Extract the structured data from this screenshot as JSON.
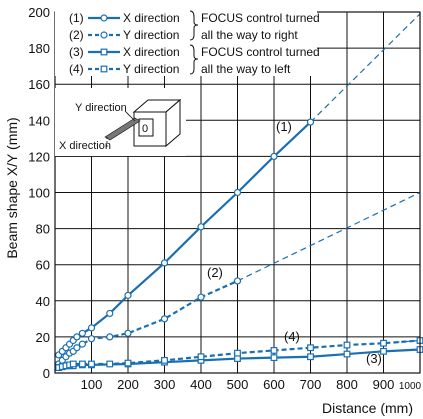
{
  "chart_data": {
    "type": "line",
    "xlabel": "Distance (mm)",
    "ylabel": "Beam shape X/Y (mm)",
    "xlim": [
      0,
      1000
    ],
    "ylim": [
      0,
      200
    ],
    "x_ticks": [
      100,
      200,
      300,
      400,
      500,
      600,
      700,
      800,
      900,
      1000
    ],
    "y_ticks": [
      0,
      20,
      40,
      60,
      80,
      100,
      120,
      140,
      160,
      180,
      200
    ],
    "grid": true,
    "legend_position": "top-left",
    "legend": [
      {
        "index": "(1)",
        "axis_text": "X direction",
        "note": "FOCUS control turned"
      },
      {
        "index": "(2)",
        "axis_text": "Y direction",
        "note": "all the way to right"
      },
      {
        "index": "(3)",
        "axis_text": "X direction",
        "note": "FOCUS control turned"
      },
      {
        "index": "(4)",
        "axis_text": "Y direction",
        "note": "all the way to left"
      }
    ],
    "series": [
      {
        "name": "(1) X direction",
        "label": "(1)",
        "style": "solid",
        "marker": "circle",
        "x": [
          10,
          20,
          30,
          40,
          50,
          60,
          75,
          100,
          150,
          200,
          300,
          400,
          500,
          600,
          700
        ],
        "y": [
          10,
          12,
          14,
          16,
          18,
          20,
          22,
          25,
          33,
          43,
          61,
          81,
          100,
          120,
          139
        ],
        "extrapolation": {
          "x": [
            700,
            1000
          ],
          "y": [
            139,
            199
          ]
        }
      },
      {
        "name": "(2) Y direction",
        "label": "(2)",
        "style": "dotted",
        "marker": "circle",
        "x": [
          10,
          20,
          30,
          40,
          50,
          60,
          75,
          100,
          150,
          200,
          300,
          400,
          500
        ],
        "y": [
          5,
          7,
          9,
          11,
          12,
          14,
          16,
          19,
          20,
          22,
          30,
          42,
          51
        ],
        "extrapolation": {
          "x": [
            500,
            1000
          ],
          "y": [
            51,
            100
          ]
        }
      },
      {
        "name": "(3) X direction",
        "label": "(3)",
        "style": "solid",
        "marker": "square",
        "x": [
          10,
          20,
          30,
          40,
          50,
          75,
          100,
          200,
          300,
          400,
          500,
          600,
          700,
          800,
          900,
          1000
        ],
        "y": [
          3,
          3.5,
          4,
          4,
          4,
          4.5,
          4.5,
          5,
          6,
          7,
          8,
          8.5,
          9,
          10.5,
          12,
          13
        ]
      },
      {
        "name": "(4) Y direction",
        "label": "(4)",
        "style": "dotted",
        "marker": "square",
        "x": [
          10,
          20,
          30,
          40,
          50,
          75,
          100,
          150,
          200,
          300,
          400,
          500,
          600,
          700,
          800,
          900,
          1000
        ],
        "y": [
          3,
          3.5,
          4,
          4.5,
          5,
          5,
          5,
          5,
          5.5,
          7,
          9,
          11,
          12.5,
          14,
          15.5,
          16.5,
          18
        ],
        "extrapolation": {
          "x": [
            900,
            1000
          ],
          "y": [
            16.5,
            18
          ]
        }
      }
    ],
    "inset": {
      "y_label": "Y direction",
      "x_label": "X direction",
      "badge": "0"
    },
    "colors": {
      "series": "#1a6fb3",
      "grid": "#111111",
      "text": "#111111"
    }
  }
}
